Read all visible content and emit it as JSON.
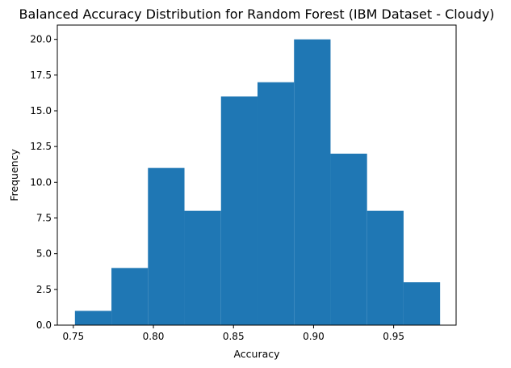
{
  "chart_data": {
    "type": "bar",
    "subtype": "histogram",
    "title": "Balanced Accuracy Distribution for Random Forest (IBM Dataset - Cloudy)",
    "xlabel": "Accuracy",
    "ylabel": "Frequency",
    "xlim": [
      0.74,
      0.989
    ],
    "ylim": [
      0,
      21
    ],
    "bin_edges": [
      0.751,
      0.7738,
      0.7966,
      0.8194,
      0.8422,
      0.865,
      0.8878,
      0.9106,
      0.9334,
      0.9562,
      0.979
    ],
    "values": [
      1,
      4,
      11,
      8,
      16,
      17,
      20,
      12,
      8,
      3
    ],
    "xticks": [
      {
        "value": 0.75,
        "label": "0.75"
      },
      {
        "value": 0.8,
        "label": "0.80"
      },
      {
        "value": 0.85,
        "label": "0.85"
      },
      {
        "value": 0.9,
        "label": "0.90"
      },
      {
        "value": 0.95,
        "label": "0.95"
      }
    ],
    "yticks": [
      {
        "value": 0,
        "label": "0.0"
      },
      {
        "value": 2.5,
        "label": "2.5"
      },
      {
        "value": 5,
        "label": "5.0"
      },
      {
        "value": 7.5,
        "label": "7.5"
      },
      {
        "value": 10,
        "label": "10.0"
      },
      {
        "value": 12.5,
        "label": "12.5"
      },
      {
        "value": 15,
        "label": "15.0"
      },
      {
        "value": 17.5,
        "label": "17.5"
      },
      {
        "value": 20,
        "label": "20.0"
      }
    ],
    "bar_color": "#1f77b4",
    "grid": false,
    "legend": "none"
  }
}
